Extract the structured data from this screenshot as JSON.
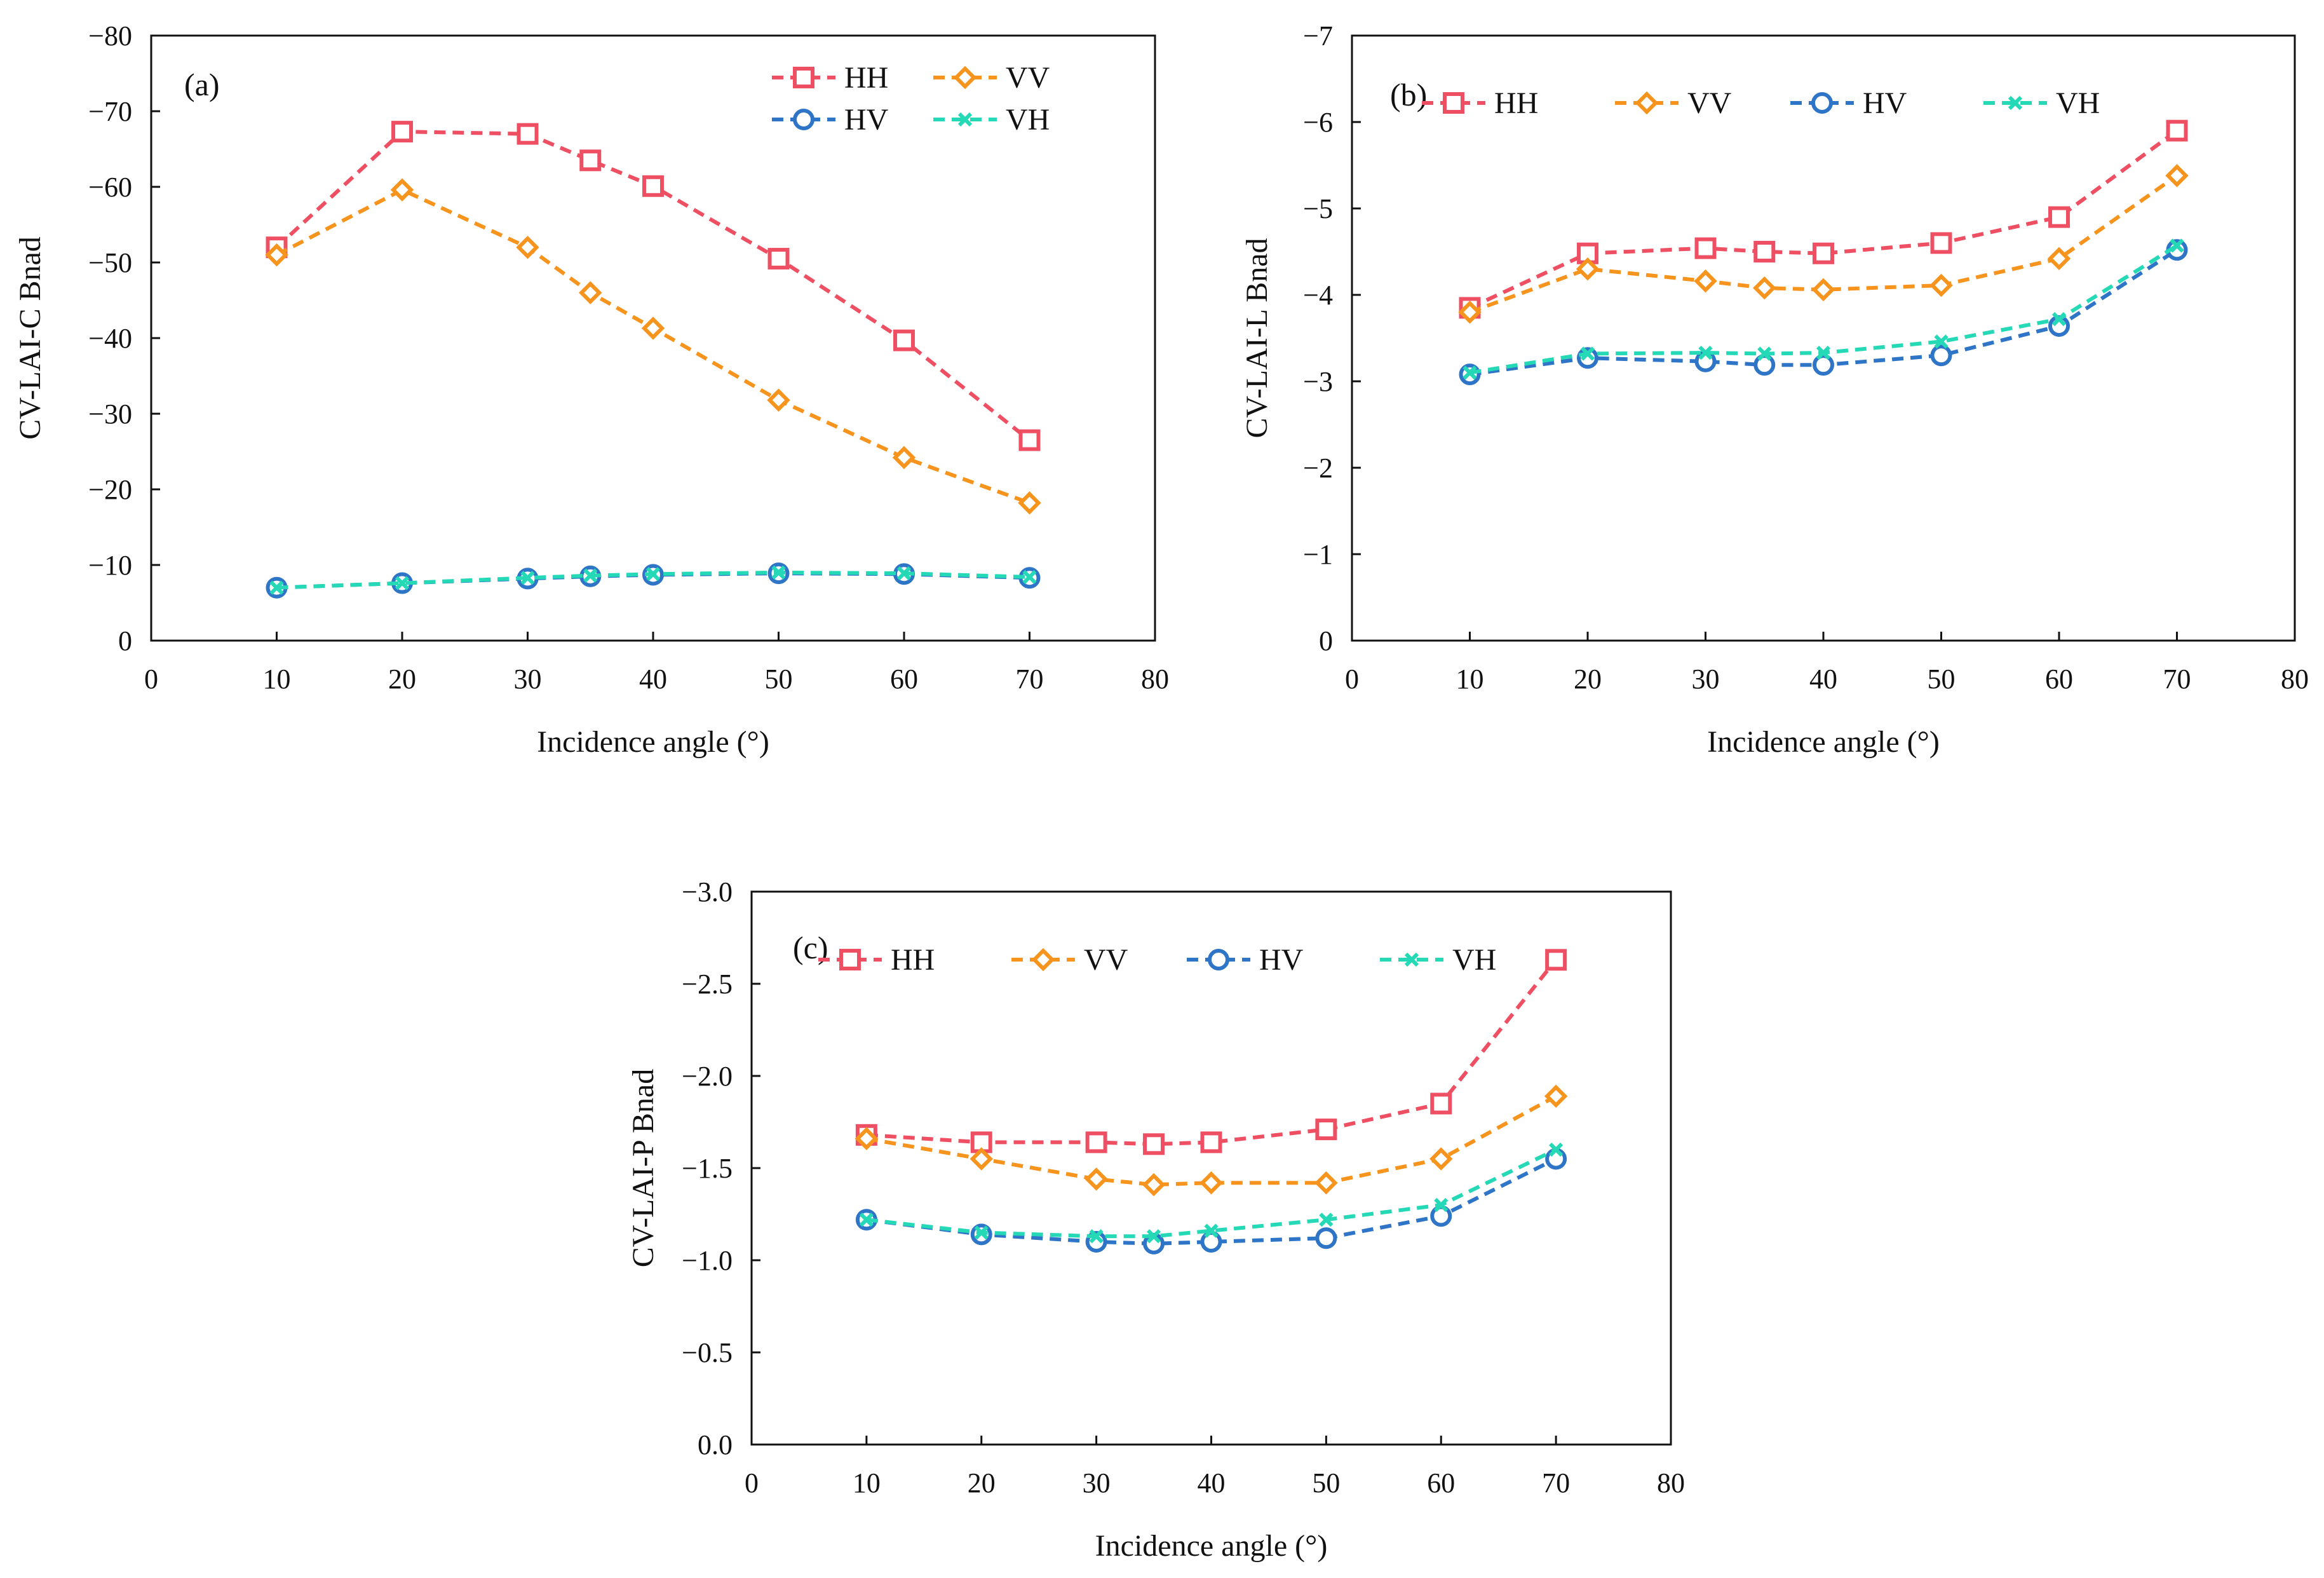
{
  "colors": {
    "HH": "#ee4f62",
    "VV": "#f7941d",
    "HV": "#2e75c7",
    "VH": "#25d9b7",
    "axis": "#111111"
  },
  "chart_data": [
    {
      "id": "a",
      "type": "line",
      "label": "(a)",
      "xlabel": "Incidence angle (°)",
      "ylabel": "CV-LAI-C Bnad",
      "xlim": [
        0,
        80
      ],
      "ylim": [
        0,
        -80
      ],
      "xticks": [
        "0",
        "10",
        "20",
        "30",
        "40",
        "50",
        "60",
        "70",
        "80"
      ],
      "yticks": [
        "0",
        "−10",
        "−20",
        "−30",
        "−40",
        "−50",
        "−60",
        "−70",
        "−80"
      ],
      "x": [
        10,
        20,
        30,
        35,
        40,
        50,
        60,
        70
      ],
      "series": [
        {
          "name": "HH",
          "marker": "square",
          "values": [
            -52,
            -67.3,
            -67,
            -63.5,
            -60.1,
            -50.5,
            -39.7,
            -26.5
          ]
        },
        {
          "name": "VV",
          "marker": "diamond",
          "values": [
            -51,
            -59.6,
            -52,
            -46,
            -41.3,
            -31.8,
            -24.2,
            -18.2
          ]
        },
        {
          "name": "HV",
          "marker": "circle",
          "values": [
            -7,
            -7.6,
            -8.2,
            -8.5,
            -8.7,
            -8.9,
            -8.8,
            -8.3
          ]
        },
        {
          "name": "VH",
          "marker": "x",
          "values": [
            -7,
            -7.6,
            -8.3,
            -8.6,
            -8.8,
            -9.0,
            -8.9,
            -8.4
          ]
        }
      ],
      "legend": {
        "layout": "2x2",
        "placement": "top-right"
      }
    },
    {
      "id": "b",
      "type": "line",
      "label": "(b)",
      "xlabel": "Incidence angle (°)",
      "ylabel": "CV-LAI-L Bnad",
      "xlim": [
        0,
        80
      ],
      "ylim": [
        0,
        -7
      ],
      "xticks": [
        "0",
        "10",
        "20",
        "30",
        "40",
        "50",
        "60",
        "70",
        "80"
      ],
      "yticks": [
        "0",
        "−1",
        "−2",
        "−3",
        "−4",
        "−5",
        "−6",
        "−7"
      ],
      "x": [
        10,
        20,
        30,
        35,
        40,
        50,
        60,
        70
      ],
      "series": [
        {
          "name": "HH",
          "marker": "square",
          "values": [
            -3.85,
            -4.48,
            -4.54,
            -4.5,
            -4.48,
            -4.6,
            -4.9,
            -5.9
          ]
        },
        {
          "name": "VV",
          "marker": "diamond",
          "values": [
            -3.8,
            -4.3,
            -4.16,
            -4.08,
            -4.06,
            -4.11,
            -4.42,
            -5.38
          ]
        },
        {
          "name": "HV",
          "marker": "circle",
          "values": [
            -3.08,
            -3.27,
            -3.23,
            -3.19,
            -3.19,
            -3.3,
            -3.64,
            -4.52
          ]
        },
        {
          "name": "VH",
          "marker": "x",
          "values": [
            -3.1,
            -3.32,
            -3.33,
            -3.32,
            -3.33,
            -3.46,
            -3.72,
            -4.57
          ]
        }
      ],
      "legend": {
        "layout": "row",
        "placement": "top-left"
      }
    },
    {
      "id": "c",
      "type": "line",
      "label": "(c)",
      "xlabel": "Incidence angle (°)",
      "ylabel": "CV-LAI-P Bnad",
      "xlim": [
        0,
        80
      ],
      "ylim": [
        0,
        -3.0
      ],
      "xticks": [
        "0",
        "10",
        "20",
        "30",
        "40",
        "50",
        "60",
        "70",
        "80"
      ],
      "yticks": [
        "0.0",
        "−0.5",
        "−1.0",
        "−1.5",
        "−2.0",
        "−2.5",
        "−3.0"
      ],
      "x": [
        10,
        20,
        30,
        35,
        40,
        50,
        60,
        70
      ],
      "series": [
        {
          "name": "HH",
          "marker": "square",
          "values": [
            -1.68,
            -1.64,
            -1.64,
            -1.63,
            -1.64,
            -1.71,
            -1.85,
            -2.63
          ]
        },
        {
          "name": "VV",
          "marker": "diamond",
          "values": [
            -1.66,
            -1.55,
            -1.44,
            -1.41,
            -1.42,
            -1.42,
            -1.55,
            -1.89
          ]
        },
        {
          "name": "HV",
          "marker": "circle",
          "values": [
            -1.22,
            -1.14,
            -1.1,
            -1.09,
            -1.1,
            -1.12,
            -1.24,
            -1.55
          ]
        },
        {
          "name": "VH",
          "marker": "x",
          "values": [
            -1.22,
            -1.15,
            -1.13,
            -1.13,
            -1.16,
            -1.22,
            -1.3,
            -1.6
          ]
        }
      ],
      "legend": {
        "layout": "row",
        "placement": "top-left"
      }
    }
  ]
}
